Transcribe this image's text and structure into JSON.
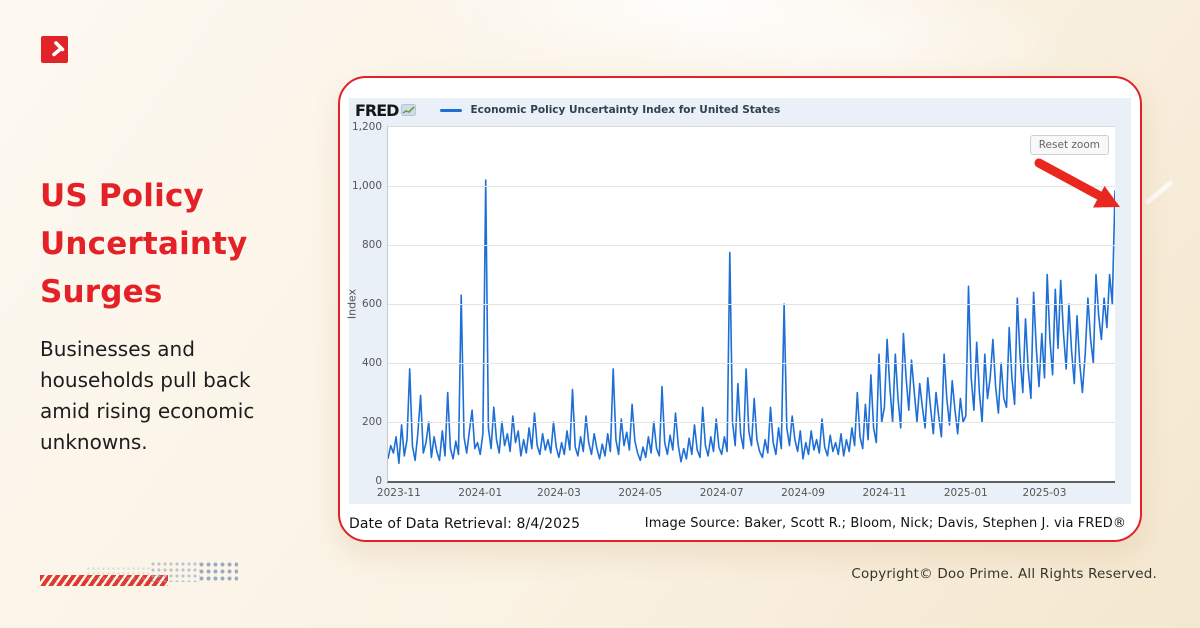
{
  "left_panel": {
    "headline_lines": [
      "US Policy",
      "Uncertainty",
      "Surges"
    ],
    "subtext_lines": [
      "Businesses and",
      "households pull back",
      "amid rising economic",
      "unknowns."
    ],
    "accent_color": "#e32127"
  },
  "footer": {
    "copyright": "Copyright© Doo Prime. All Rights Reserved."
  },
  "card": {
    "border_color": "#e22128",
    "fred_logo_text": "FRED",
    "legend_label": "Economic Policy Uncertainty Index for United States",
    "reset_zoom_label": "Reset zoom",
    "date_retrieval": "Date of Data Retrieval: 8/4/2025",
    "image_source": "Image Source: Baker, Scott R.; Bloom, Nick; Davis, Stephen J. via FRED®"
  },
  "chart_data": {
    "type": "line",
    "title": "Economic Policy Uncertainty Index for United States",
    "ylabel": "Index",
    "ylim": [
      0,
      1200
    ],
    "ytick_step": 200,
    "grid": true,
    "legend_position": "top",
    "line_color": "#1d6fd6",
    "x_ticks": [
      {
        "label": "2023-11",
        "index": 4
      },
      {
        "label": "2024-01",
        "index": 34
      },
      {
        "label": "2024-03",
        "index": 63
      },
      {
        "label": "2024-05",
        "index": 93
      },
      {
        "label": "2024-07",
        "index": 123
      },
      {
        "label": "2024-09",
        "index": 153
      },
      {
        "label": "2024-11",
        "index": 183
      },
      {
        "label": "2025-01",
        "index": 213
      },
      {
        "label": "2025-03",
        "index": 242
      }
    ],
    "x_range_note": "daily values 2023-10 through 2025-04",
    "values": [
      75,
      120,
      95,
      150,
      60,
      190,
      85,
      140,
      380,
      120,
      70,
      160,
      290,
      95,
      130,
      200,
      80,
      150,
      100,
      70,
      170,
      85,
      300,
      110,
      75,
      135,
      90,
      630,
      150,
      95,
      170,
      240,
      110,
      130,
      90,
      160,
      1020,
      180,
      110,
      250,
      140,
      95,
      200,
      120,
      160,
      100,
      220,
      130,
      170,
      85,
      140,
      95,
      180,
      110,
      230,
      120,
      90,
      160,
      105,
      140,
      95,
      200,
      115,
      80,
      130,
      90,
      170,
      105,
      310,
      115,
      85,
      150,
      100,
      220,
      130,
      90,
      160,
      110,
      75,
      125,
      85,
      160,
      100,
      380,
      140,
      90,
      210,
      120,
      165,
      105,
      260,
      135,
      95,
      70,
      115,
      80,
      150,
      95,
      200,
      110,
      85,
      320,
      130,
      90,
      155,
      105,
      230,
      120,
      65,
      110,
      75,
      145,
      90,
      190,
      105,
      80,
      250,
      120,
      85,
      150,
      100,
      210,
      115,
      90,
      150,
      100,
      775,
      200,
      120,
      330,
      160,
      110,
      380,
      170,
      120,
      280,
      140,
      100,
      80,
      140,
      95,
      250,
      130,
      90,
      180,
      110,
      600,
      180,
      120,
      220,
      140,
      100,
      170,
      75,
      130,
      90,
      170,
      105,
      140,
      95,
      210,
      115,
      85,
      155,
      100,
      130,
      90,
      160,
      85,
      140,
      100,
      180,
      120,
      300,
      150,
      110,
      260,
      140,
      360,
      180,
      130,
      430,
      200,
      250,
      480,
      320,
      200,
      430,
      280,
      180,
      500,
      350,
      240,
      410,
      300,
      200,
      330,
      250,
      180,
      350,
      250,
      160,
      300,
      220,
      150,
      430,
      280,
      190,
      340,
      240,
      160,
      280,
      200,
      220,
      660,
      350,
      240,
      470,
      300,
      200,
      430,
      280,
      350,
      480,
      320,
      230,
      400,
      280,
      250,
      520,
      350,
      260,
      620,
      420,
      300,
      550,
      380,
      280,
      640,
      450,
      320,
      500,
      350,
      700,
      480,
      360,
      650,
      450,
      680,
      500,
      380,
      600,
      440,
      330,
      560,
      400,
      300,
      430,
      620,
      480,
      400,
      700,
      560,
      480,
      620,
      520,
      700,
      600,
      985
    ]
  }
}
